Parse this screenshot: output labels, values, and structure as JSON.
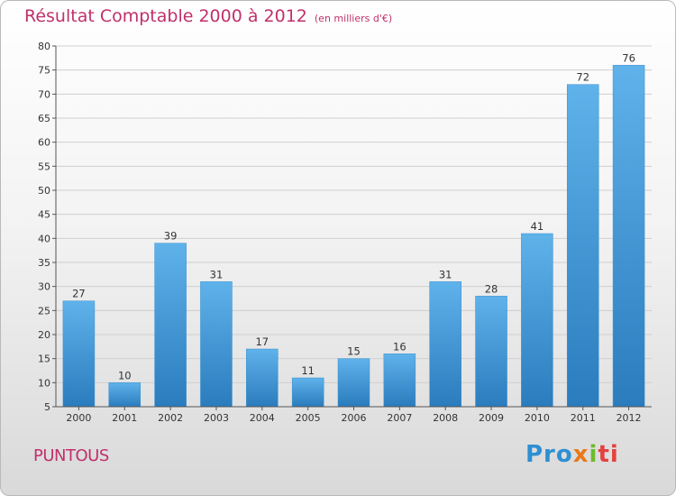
{
  "title": "Résultat Comptable 2000 à 2012",
  "subtitle": "(en milliers d'€)",
  "commune": "PUNTOUS",
  "logo": {
    "p1": "Pro",
    "p2": "x",
    "p3": "i",
    "p4": "ti"
  },
  "chart_data": {
    "type": "bar",
    "title": "Résultat Comptable 2000 à 2012",
    "subtitle": "(en milliers d'€)",
    "xlabel": "",
    "ylabel": "",
    "categories": [
      "2000",
      "2001",
      "2002",
      "2003",
      "2004",
      "2005",
      "2006",
      "2007",
      "2008",
      "2009",
      "2010",
      "2011",
      "2012"
    ],
    "values": [
      27,
      10,
      39,
      31,
      17,
      11,
      15,
      16,
      31,
      28,
      41,
      72,
      76
    ],
    "ylim": [
      5,
      80
    ],
    "yticks": [
      5,
      10,
      15,
      20,
      25,
      30,
      35,
      40,
      45,
      50,
      55,
      60,
      65,
      70,
      75,
      80
    ],
    "grid": true,
    "bar_color": "#4a9fdf"
  }
}
